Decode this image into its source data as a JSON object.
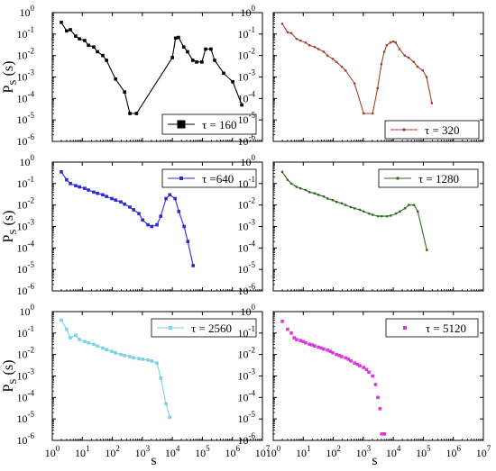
{
  "figure": {
    "ylabel_main": "P",
    "ylabel_sub": "S",
    "ylabel_arg": "(s)",
    "xlabel": "s"
  },
  "chart_data": [
    {
      "type": "line",
      "legend": "τ = 160",
      "legend_position": "bottom-right",
      "marker": "square",
      "color": "#000000",
      "xscale": "log",
      "yscale": "log",
      "xlim": [
        1,
        10000000
      ],
      "ylim": [
        1e-06,
        1
      ],
      "series": [
        {
          "x": [
            2,
            3,
            4,
            6,
            8,
            12,
            16,
            24,
            32,
            48,
            64,
            128,
            256,
            384,
            640,
            10000,
            12800,
            16000,
            24000,
            32000,
            48000,
            64000,
            96000,
            128000,
            192000,
            256000,
            512000,
            1024000,
            2048000
          ],
          "y": [
            0.35,
            0.14,
            0.16,
            0.08,
            0.06,
            0.05,
            0.03,
            0.025,
            0.015,
            0.01,
            0.006,
            0.0008,
            0.0002,
            2e-05,
            2e-05,
            0.008,
            0.065,
            0.07,
            0.025,
            0.015,
            0.006,
            0.005,
            0.005,
            0.02,
            0.02,
            0.006,
            0.0015,
            0.0006,
            5e-05
          ]
        }
      ]
    },
    {
      "type": "line",
      "legend": "τ = 320",
      "legend_position": "bottom-right",
      "marker": "dot",
      "color": "#a0442c",
      "xscale": "log",
      "yscale": "log",
      "xlim": [
        1,
        10000000
      ],
      "ylim": [
        1e-06,
        1
      ],
      "series": [
        {
          "x": [
            2,
            3,
            4,
            6,
            8,
            12,
            16,
            24,
            32,
            48,
            64,
            96,
            128,
            192,
            256,
            512,
            1024,
            2048,
            3000,
            4000,
            5000,
            6000,
            8000,
            10000,
            12000,
            16000,
            24000,
            32000,
            48000,
            64000,
            96000,
            128000,
            192000
          ],
          "y": [
            0.3,
            0.12,
            0.11,
            0.06,
            0.05,
            0.04,
            0.03,
            0.025,
            0.02,
            0.015,
            0.01,
            0.007,
            0.005,
            0.003,
            0.002,
            0.0005,
            2e-05,
            2e-05,
            0.0003,
            0.004,
            0.015,
            0.03,
            0.04,
            0.045,
            0.04,
            0.02,
            0.01,
            0.008,
            0.005,
            0.003,
            0.002,
            0.001,
            6e-05
          ]
        }
      ]
    },
    {
      "type": "line",
      "legend": "τ =640",
      "legend_position": "top-right",
      "marker": "square",
      "color": "#2b2bd6",
      "xscale": "log",
      "yscale": "log",
      "xlim": [
        1,
        10000000
      ],
      "ylim": [
        1e-06,
        1
      ],
      "series": [
        {
          "x": [
            2,
            3,
            4,
            6,
            8,
            12,
            16,
            24,
            32,
            48,
            64,
            96,
            128,
            192,
            256,
            384,
            512,
            768,
            1024,
            1536,
            2048,
            3072,
            4096,
            6144,
            8192,
            12288,
            16384,
            24576,
            32768,
            49152
          ],
          "y": [
            0.35,
            0.15,
            0.1,
            0.08,
            0.07,
            0.06,
            0.05,
            0.04,
            0.035,
            0.03,
            0.025,
            0.02,
            0.017,
            0.014,
            0.011,
            0.008,
            0.006,
            0.004,
            0.002,
            0.0012,
            0.001,
            0.0012,
            0.003,
            0.02,
            0.03,
            0.02,
            0.005,
            0.001,
            0.0002,
            1.5e-05
          ]
        }
      ]
    },
    {
      "type": "line",
      "legend": "τ = 1280",
      "legend_position": "top-right",
      "marker": "dot",
      "color": "#2e6b1e",
      "xscale": "log",
      "yscale": "log",
      "xlim": [
        1,
        10000000
      ],
      "ylim": [
        1e-06,
        1
      ],
      "series": [
        {
          "x": [
            2,
            3,
            4,
            6,
            8,
            12,
            16,
            24,
            32,
            48,
            64,
            96,
            128,
            192,
            256,
            384,
            512,
            768,
            1024,
            1536,
            2048,
            3072,
            4096,
            6144,
            8192,
            12288,
            16384,
            24576,
            32768,
            49152,
            65536,
            131072
          ],
          "y": [
            0.35,
            0.15,
            0.1,
            0.07,
            0.06,
            0.05,
            0.04,
            0.035,
            0.03,
            0.025,
            0.02,
            0.017,
            0.014,
            0.012,
            0.01,
            0.008,
            0.007,
            0.006,
            0.005,
            0.004,
            0.0035,
            0.003,
            0.003,
            0.003,
            0.0032,
            0.004,
            0.005,
            0.007,
            0.01,
            0.01,
            0.005,
            8e-05
          ]
        }
      ]
    },
    {
      "type": "line",
      "legend": "τ = 2560",
      "legend_position": "top-right",
      "marker": "square",
      "color": "#7fd0e8",
      "xscale": "log",
      "yscale": "log",
      "xlim": [
        1,
        10000000
      ],
      "ylim": [
        1e-06,
        1
      ],
      "series": [
        {
          "x": [
            2,
            3,
            4,
            6,
            8,
            12,
            16,
            24,
            32,
            48,
            64,
            96,
            128,
            192,
            256,
            384,
            512,
            768,
            1024,
            1536,
            2048,
            3072,
            4096,
            6144,
            8192
          ],
          "y": [
            0.4,
            0.15,
            0.06,
            0.08,
            0.05,
            0.04,
            0.035,
            0.03,
            0.025,
            0.02,
            0.017,
            0.014,
            0.012,
            0.01,
            0.009,
            0.008,
            0.007,
            0.0065,
            0.006,
            0.0055,
            0.005,
            0.004,
            0.0008,
            5e-05,
            1.2e-05
          ]
        }
      ]
    },
    {
      "type": "scatter",
      "legend": "τ = 5120",
      "legend_position": "top-right",
      "marker": "square",
      "color": "#d83ad8",
      "xscale": "log",
      "yscale": "log",
      "xlim": [
        1,
        10000000
      ],
      "ylim": [
        1e-06,
        1
      ],
      "series": [
        {
          "x": [
            2,
            3,
            4,
            5,
            6,
            8,
            10,
            12,
            16,
            20,
            24,
            32,
            40,
            48,
            64,
            80,
            96,
            128,
            160,
            192,
            256,
            320,
            384,
            512,
            640,
            768,
            1024,
            1280,
            1536,
            2048,
            2560,
            3072,
            3584,
            4096,
            5120
          ],
          "y": [
            0.35,
            0.15,
            0.1,
            0.06,
            0.05,
            0.045,
            0.04,
            0.035,
            0.03,
            0.028,
            0.025,
            0.022,
            0.02,
            0.018,
            0.016,
            0.014,
            0.012,
            0.01,
            0.009,
            0.008,
            0.007,
            0.006,
            0.005,
            0.004,
            0.0035,
            0.003,
            0.0025,
            0.002,
            0.0015,
            0.001,
            0.0004,
            0.0001,
            3e-05,
            2e-06,
            2e-06
          ]
        }
      ]
    }
  ]
}
